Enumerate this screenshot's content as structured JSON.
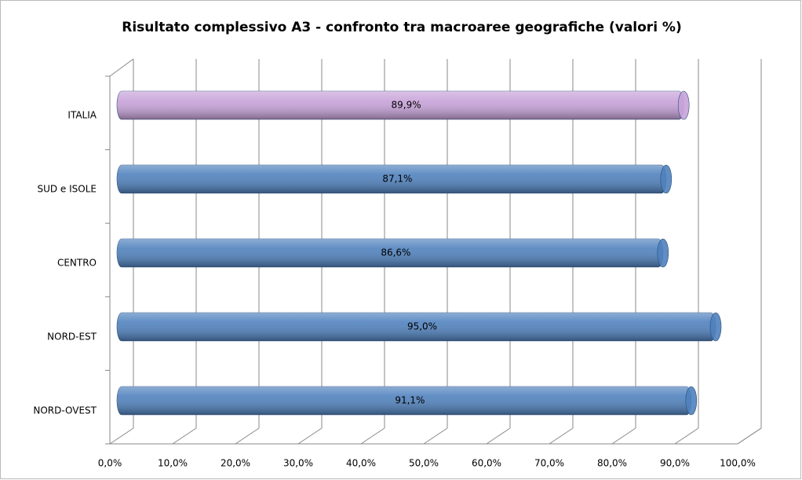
{
  "chart_data": {
    "type": "bar",
    "orientation": "horizontal",
    "title": "Risultato complessivo A3 - confronto tra macroaree geografiche (valori %)",
    "categories": [
      "NORD-OVEST",
      "NORD-EST",
      "CENTRO",
      "SUD e ISOLE",
      "ITALIA"
    ],
    "values": [
      91.1,
      95.0,
      86.6,
      87.1,
      89.9
    ],
    "value_labels": [
      "91,1%",
      "95,0%",
      "86,6%",
      "87,1%",
      "89,9%"
    ],
    "colors": [
      "#4f81bd",
      "#4f81bd",
      "#4f81bd",
      "#4f81bd",
      "#c7a2d9"
    ],
    "xlim": [
      0,
      100
    ],
    "xticks": [
      {
        "value": 0,
        "label": "0,0%"
      },
      {
        "value": 10,
        "label": "10,0%"
      },
      {
        "value": 20,
        "label": "20,0%"
      },
      {
        "value": 30,
        "label": "30,0%"
      },
      {
        "value": 40,
        "label": "40,0%"
      },
      {
        "value": 50,
        "label": "50,0%"
      },
      {
        "value": 60,
        "label": "60,0%"
      },
      {
        "value": 70,
        "label": "70,0%"
      },
      {
        "value": 80,
        "label": "80,0%"
      },
      {
        "value": 90,
        "label": "90,0%"
      },
      {
        "value": 100,
        "label": "100,0%"
      }
    ],
    "grid": true
  }
}
